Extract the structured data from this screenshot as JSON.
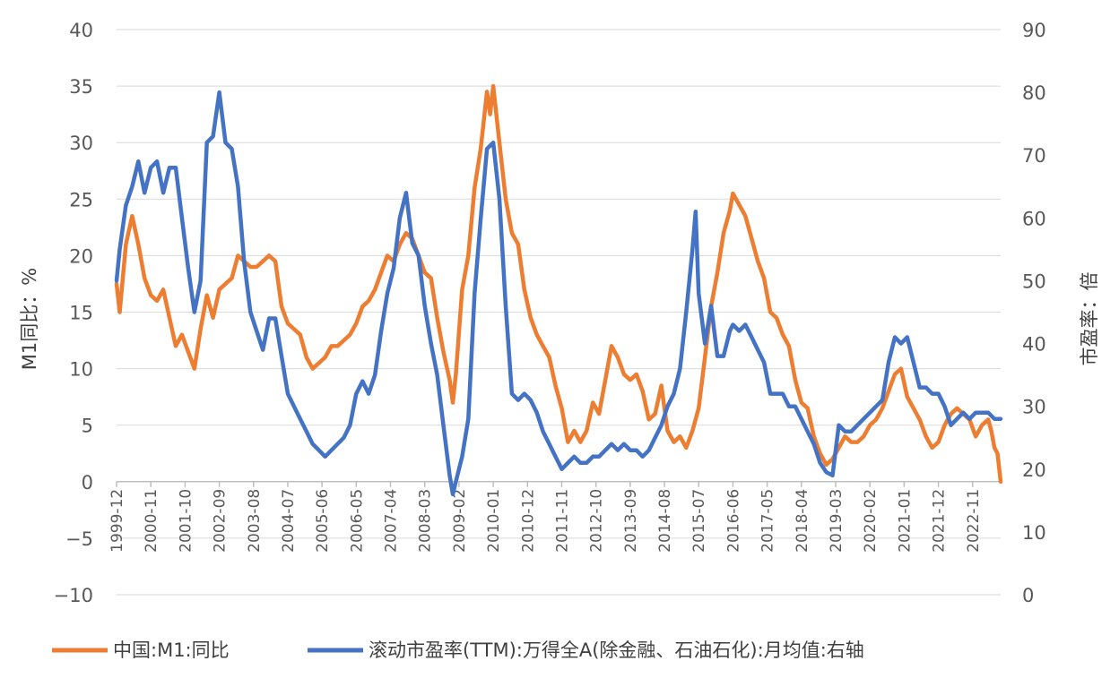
{
  "chart_data": {
    "type": "line",
    "title": "",
    "ylabel_left": "M1同比：%",
    "ylabel_right": "市盈率：倍",
    "ylim_left": [
      -10,
      40
    ],
    "yticks_left": [
      "40",
      "35",
      "30",
      "25",
      "20",
      "15",
      "10",
      "5",
      "0",
      "−5",
      "−10"
    ],
    "ylim_right": [
      0,
      90
    ],
    "yticks_right": [
      "90",
      "80",
      "70",
      "60",
      "50",
      "40",
      "30",
      "20",
      "10",
      "0"
    ],
    "x_categories": [
      "1999-12",
      "2000-11",
      "2001-10",
      "2002-09",
      "2003-08",
      "2004-07",
      "2005-06",
      "2006-05",
      "2007-04",
      "2008-03",
      "2009-02",
      "2010-01",
      "2010-12",
      "2011-11",
      "2012-10",
      "2013-09",
      "2014-08",
      "2015-07",
      "2016-06",
      "2017-05",
      "2018-04",
      "2019-03",
      "2020-02",
      "2021-01",
      "2021-12",
      "2022-11"
    ],
    "grid": "horizontal",
    "legend_position": "bottom",
    "colors": {
      "m1": "#ED7D31",
      "pe": "#4472C4"
    },
    "series": [
      {
        "name": "中国:M1:同比",
        "axis": "left",
        "points": [
          [
            "1999-12",
            17.5
          ],
          [
            "2000-01",
            15
          ],
          [
            "2000-03",
            21
          ],
          [
            "2000-05",
            23.5
          ],
          [
            "2000-07",
            21
          ],
          [
            "2000-09",
            18
          ],
          [
            "2000-11",
            16.5
          ],
          [
            "2001-01",
            16
          ],
          [
            "2001-03",
            17
          ],
          [
            "2001-05",
            14.5
          ],
          [
            "2001-07",
            12
          ],
          [
            "2001-09",
            13
          ],
          [
            "2001-11",
            11.5
          ],
          [
            "2002-01",
            10
          ],
          [
            "2002-03",
            13.5
          ],
          [
            "2002-05",
            16.5
          ],
          [
            "2002-07",
            14.5
          ],
          [
            "2002-09",
            17
          ],
          [
            "2002-11",
            17.5
          ],
          [
            "2003-01",
            18
          ],
          [
            "2003-03",
            20
          ],
          [
            "2003-05",
            19.5
          ],
          [
            "2003-07",
            19
          ],
          [
            "2003-09",
            19
          ],
          [
            "2003-11",
            19.5
          ],
          [
            "2004-01",
            20
          ],
          [
            "2004-03",
            19.5
          ],
          [
            "2004-05",
            15.5
          ],
          [
            "2004-07",
            14
          ],
          [
            "2004-09",
            13.5
          ],
          [
            "2004-11",
            13
          ],
          [
            "2005-01",
            11
          ],
          [
            "2005-03",
            10
          ],
          [
            "2005-05",
            10.5
          ],
          [
            "2005-07",
            11
          ],
          [
            "2005-09",
            12
          ],
          [
            "2005-11",
            12
          ],
          [
            "2006-01",
            12.5
          ],
          [
            "2006-03",
            13
          ],
          [
            "2006-05",
            14
          ],
          [
            "2006-07",
            15.5
          ],
          [
            "2006-09",
            16
          ],
          [
            "2006-11",
            17
          ],
          [
            "2007-01",
            18.5
          ],
          [
            "2007-03",
            20
          ],
          [
            "2007-05",
            19.5
          ],
          [
            "2007-07",
            21
          ],
          [
            "2007-09",
            22
          ],
          [
            "2007-11",
            21.5
          ],
          [
            "2008-01",
            20
          ],
          [
            "2008-03",
            18.5
          ],
          [
            "2008-05",
            18
          ],
          [
            "2008-07",
            14.5
          ],
          [
            "2008-09",
            11.5
          ],
          [
            "2008-11",
            9
          ],
          [
            "2008-12",
            7
          ],
          [
            "2009-01",
            9.5
          ],
          [
            "2009-03",
            17
          ],
          [
            "2009-05",
            20
          ],
          [
            "2009-07",
            26
          ],
          [
            "2009-09",
            29.5
          ],
          [
            "2009-11",
            34.5
          ],
          [
            "2009-12",
            32.5
          ],
          [
            "2010-01",
            35
          ],
          [
            "2010-03",
            30
          ],
          [
            "2010-05",
            25
          ],
          [
            "2010-07",
            22
          ],
          [
            "2010-09",
            21
          ],
          [
            "2010-11",
            17
          ],
          [
            "2011-01",
            14.5
          ],
          [
            "2011-03",
            13
          ],
          [
            "2011-05",
            12
          ],
          [
            "2011-07",
            11
          ],
          [
            "2011-09",
            8.5
          ],
          [
            "2011-11",
            6.5
          ],
          [
            "2012-01",
            3.5
          ],
          [
            "2012-03",
            4.5
          ],
          [
            "2012-05",
            3.5
          ],
          [
            "2012-07",
            4.5
          ],
          [
            "2012-09",
            7
          ],
          [
            "2012-11",
            6
          ],
          [
            "2013-01",
            9
          ],
          [
            "2013-03",
            12
          ],
          [
            "2013-05",
            11
          ],
          [
            "2013-07",
            9.5
          ],
          [
            "2013-09",
            9
          ],
          [
            "2013-11",
            9.5
          ],
          [
            "2014-01",
            8
          ],
          [
            "2014-03",
            5.5
          ],
          [
            "2014-05",
            6
          ],
          [
            "2014-07",
            8.5
          ],
          [
            "2014-09",
            4.5
          ],
          [
            "2014-11",
            3.5
          ],
          [
            "2015-01",
            4
          ],
          [
            "2015-03",
            3
          ],
          [
            "2015-05",
            4.5
          ],
          [
            "2015-07",
            6.5
          ],
          [
            "2015-09",
            11
          ],
          [
            "2015-11",
            15.5
          ],
          [
            "2016-01",
            18.5
          ],
          [
            "2016-03",
            22
          ],
          [
            "2016-05",
            24
          ],
          [
            "2016-06",
            25.5
          ],
          [
            "2016-08",
            24.5
          ],
          [
            "2016-10",
            23.5
          ],
          [
            "2016-12",
            21.5
          ],
          [
            "2017-02",
            19.5
          ],
          [
            "2017-04",
            18
          ],
          [
            "2017-06",
            15
          ],
          [
            "2017-08",
            14.5
          ],
          [
            "2017-10",
            13
          ],
          [
            "2017-12",
            12
          ],
          [
            "2018-02",
            9
          ],
          [
            "2018-04",
            7
          ],
          [
            "2018-06",
            6.5
          ],
          [
            "2018-08",
            4
          ],
          [
            "2018-10",
            2.5
          ],
          [
            "2018-12",
            1.5
          ],
          [
            "2019-02",
            2
          ],
          [
            "2019-04",
            3
          ],
          [
            "2019-06",
            4
          ],
          [
            "2019-08",
            3.5
          ],
          [
            "2019-10",
            3.5
          ],
          [
            "2019-12",
            4
          ],
          [
            "2020-02",
            5
          ],
          [
            "2020-04",
            5.5
          ],
          [
            "2020-06",
            6.5
          ],
          [
            "2020-08",
            8
          ],
          [
            "2020-10",
            9.5
          ],
          [
            "2020-12",
            10
          ],
          [
            "2021-02",
            7.5
          ],
          [
            "2021-04",
            6.5
          ],
          [
            "2021-06",
            5.5
          ],
          [
            "2021-08",
            4
          ],
          [
            "2021-10",
            3
          ],
          [
            "2021-12",
            3.5
          ],
          [
            "2022-02",
            5
          ],
          [
            "2022-04",
            6
          ],
          [
            "2022-06",
            6.5
          ],
          [
            "2022-08",
            6
          ],
          [
            "2022-10",
            5.5
          ],
          [
            "2022-12",
            4
          ],
          [
            "2023-02",
            5
          ],
          [
            "2023-04",
            5.5
          ],
          [
            "2023-05",
            4.5
          ],
          [
            "2023-06",
            3
          ],
          [
            "2023-07",
            2.5
          ],
          [
            "2023-08",
            0
          ]
        ]
      },
      {
        "name": "滚动市盈率(TTM):万得全A(除金融、石油石化):月均值:右轴",
        "axis": "right",
        "points": [
          [
            "1999-12",
            50
          ],
          [
            "2000-01",
            55
          ],
          [
            "2000-03",
            62
          ],
          [
            "2000-05",
            65
          ],
          [
            "2000-07",
            69
          ],
          [
            "2000-09",
            64
          ],
          [
            "2000-11",
            68
          ],
          [
            "2001-01",
            69
          ],
          [
            "2001-03",
            64
          ],
          [
            "2001-05",
            68
          ],
          [
            "2001-07",
            68
          ],
          [
            "2001-09",
            60
          ],
          [
            "2001-11",
            52
          ],
          [
            "2002-01",
            45
          ],
          [
            "2002-03",
            50
          ],
          [
            "2002-05",
            72
          ],
          [
            "2002-07",
            73
          ],
          [
            "2002-09",
            80
          ],
          [
            "2002-11",
            72
          ],
          [
            "2003-01",
            71
          ],
          [
            "2003-03",
            65
          ],
          [
            "2003-05",
            53
          ],
          [
            "2003-07",
            45
          ],
          [
            "2003-09",
            42
          ],
          [
            "2003-11",
            39
          ],
          [
            "2004-01",
            44
          ],
          [
            "2004-03",
            44
          ],
          [
            "2004-05",
            38
          ],
          [
            "2004-07",
            32
          ],
          [
            "2004-09",
            30
          ],
          [
            "2004-11",
            28
          ],
          [
            "2005-01",
            26
          ],
          [
            "2005-03",
            24
          ],
          [
            "2005-05",
            23
          ],
          [
            "2005-07",
            22
          ],
          [
            "2005-09",
            23
          ],
          [
            "2005-11",
            24
          ],
          [
            "2006-01",
            25
          ],
          [
            "2006-03",
            27
          ],
          [
            "2006-05",
            32
          ],
          [
            "2006-07",
            34
          ],
          [
            "2006-09",
            32
          ],
          [
            "2006-11",
            35
          ],
          [
            "2007-01",
            42
          ],
          [
            "2007-03",
            48
          ],
          [
            "2007-05",
            52
          ],
          [
            "2007-07",
            60
          ],
          [
            "2007-09",
            64
          ],
          [
            "2007-11",
            56
          ],
          [
            "2008-01",
            54
          ],
          [
            "2008-03",
            46
          ],
          [
            "2008-05",
            40
          ],
          [
            "2008-07",
            35
          ],
          [
            "2008-09",
            27
          ],
          [
            "2008-11",
            19
          ],
          [
            "2008-12",
            16
          ],
          [
            "2009-01",
            18
          ],
          [
            "2009-03",
            22
          ],
          [
            "2009-05",
            28
          ],
          [
            "2009-07",
            48
          ],
          [
            "2009-09",
            60
          ],
          [
            "2009-11",
            71
          ],
          [
            "2010-01",
            72
          ],
          [
            "2010-03",
            63
          ],
          [
            "2010-05",
            46
          ],
          [
            "2010-07",
            32
          ],
          [
            "2010-09",
            31
          ],
          [
            "2010-11",
            32
          ],
          [
            "2011-01",
            31
          ],
          [
            "2011-03",
            29
          ],
          [
            "2011-05",
            26
          ],
          [
            "2011-07",
            24
          ],
          [
            "2011-09",
            22
          ],
          [
            "2011-11",
            20
          ],
          [
            "2012-01",
            21
          ],
          [
            "2012-03",
            22
          ],
          [
            "2012-05",
            21
          ],
          [
            "2012-07",
            21
          ],
          [
            "2012-09",
            22
          ],
          [
            "2012-11",
            22
          ],
          [
            "2013-01",
            23
          ],
          [
            "2013-03",
            24
          ],
          [
            "2013-05",
            23
          ],
          [
            "2013-07",
            24
          ],
          [
            "2013-09",
            23
          ],
          [
            "2013-11",
            23
          ],
          [
            "2014-01",
            22
          ],
          [
            "2014-03",
            23
          ],
          [
            "2014-05",
            25
          ],
          [
            "2014-07",
            27
          ],
          [
            "2014-09",
            30
          ],
          [
            "2014-11",
            32
          ],
          [
            "2015-01",
            36
          ],
          [
            "2015-03",
            45
          ],
          [
            "2015-05",
            55
          ],
          [
            "2015-06",
            61
          ],
          [
            "2015-07",
            48
          ],
          [
            "2015-09",
            40
          ],
          [
            "2015-11",
            46
          ],
          [
            "2016-01",
            38
          ],
          [
            "2016-03",
            38
          ],
          [
            "2016-05",
            42
          ],
          [
            "2016-06",
            43
          ],
          [
            "2016-08",
            42
          ],
          [
            "2016-10",
            43
          ],
          [
            "2016-12",
            41
          ],
          [
            "2017-02",
            39
          ],
          [
            "2017-04",
            37
          ],
          [
            "2017-06",
            32
          ],
          [
            "2017-08",
            32
          ],
          [
            "2017-10",
            32
          ],
          [
            "2017-12",
            30
          ],
          [
            "2018-02",
            30
          ],
          [
            "2018-04",
            28
          ],
          [
            "2018-06",
            26
          ],
          [
            "2018-08",
            24
          ],
          [
            "2018-10",
            21
          ],
          [
            "2018-12",
            19.5
          ],
          [
            "2019-02",
            19
          ],
          [
            "2019-04",
            27
          ],
          [
            "2019-06",
            26
          ],
          [
            "2019-08",
            26
          ],
          [
            "2019-10",
            27
          ],
          [
            "2019-12",
            28
          ],
          [
            "2020-02",
            29
          ],
          [
            "2020-04",
            30
          ],
          [
            "2020-06",
            31
          ],
          [
            "2020-08",
            37
          ],
          [
            "2020-10",
            41
          ],
          [
            "2020-12",
            40
          ],
          [
            "2021-02",
            41
          ],
          [
            "2021-04",
            37
          ],
          [
            "2021-06",
            33
          ],
          [
            "2021-08",
            33
          ],
          [
            "2021-10",
            32
          ],
          [
            "2021-12",
            32
          ],
          [
            "2022-02",
            30
          ],
          [
            "2022-04",
            27
          ],
          [
            "2022-06",
            28
          ],
          [
            "2022-08",
            29
          ],
          [
            "2022-10",
            28
          ],
          [
            "2022-12",
            29
          ],
          [
            "2023-02",
            29
          ],
          [
            "2023-04",
            29
          ],
          [
            "2023-06",
            28
          ],
          [
            "2023-08",
            28
          ]
        ]
      }
    ]
  }
}
